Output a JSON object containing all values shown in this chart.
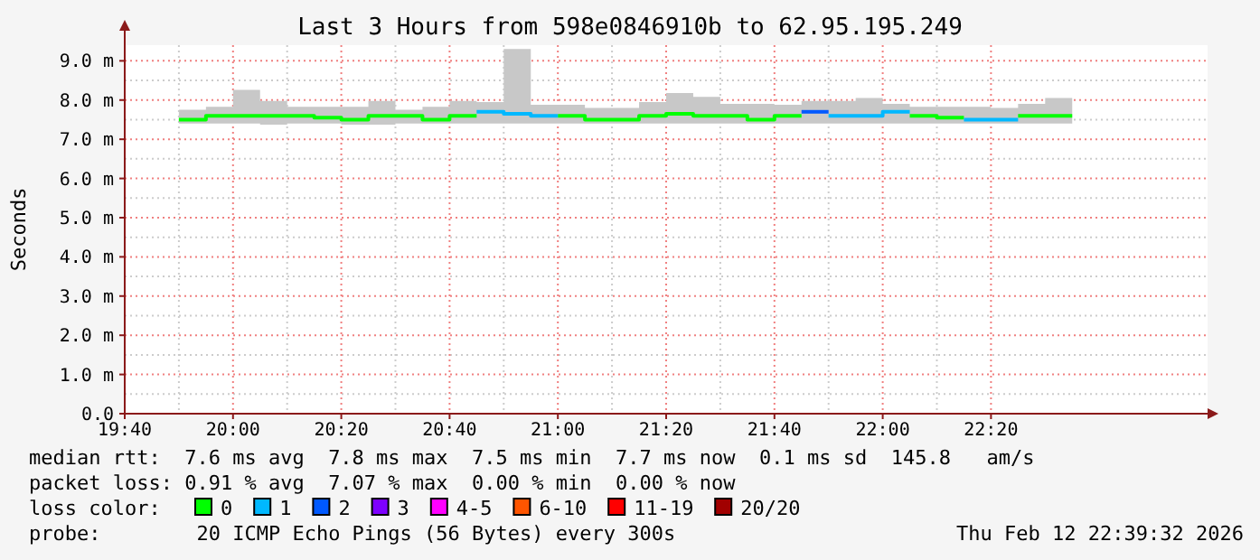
{
  "chart_data": {
    "type": "step",
    "title": "Last 3 Hours from 598e0846910b to 62.95.195.249",
    "ylabel": "Seconds",
    "legend_title": "loss color:",
    "legend": "bottom",
    "grid": true,
    "xlim": [
      19.6667,
      23
    ],
    "xticks": [
      {
        "value": 19.6667,
        "label": "19:40"
      },
      {
        "value": 20,
        "label": "20:00"
      },
      {
        "value": 20.3333,
        "label": "20:20"
      },
      {
        "value": 20.6667,
        "label": "20:40"
      },
      {
        "value": 21,
        "label": "21:00"
      },
      {
        "value": 21.3333,
        "label": "21:20"
      },
      {
        "value": 21.6667,
        "label": "21:40"
      },
      {
        "value": 22,
        "label": "22:00"
      },
      {
        "value": 22.3333,
        "label": "22:20"
      }
    ],
    "ylim": [
      0,
      9.4
    ],
    "yticks": [
      {
        "value": 0,
        "label": "0.0"
      },
      {
        "value": 1,
        "label": "1.0 m"
      },
      {
        "value": 2,
        "label": "2.0 m"
      },
      {
        "value": 3,
        "label": "3.0 m"
      },
      {
        "value": 4,
        "label": "4.0 m"
      },
      {
        "value": 5,
        "label": "5.0 m"
      },
      {
        "value": 6,
        "label": "6.0 m"
      },
      {
        "value": 7,
        "label": "7.0 m"
      },
      {
        "value": 8,
        "label": "8.0 m"
      },
      {
        "value": 9,
        "label": "9.0 m"
      }
    ],
    "series": [
      {
        "color": "#c8c8c8",
        "x": [
          19.8333,
          19.9167,
          20,
          20.0833,
          20.1667,
          20.25,
          20.3333,
          20.4167,
          20.5,
          20.5833,
          20.6667,
          20.75,
          20.8333,
          20.9167,
          21,
          21.0833,
          21.1667,
          21.25,
          21.3333,
          21.4167,
          21.5,
          21.5833,
          21.6667,
          21.75,
          21.8333,
          21.9167,
          22,
          22.0833,
          22.1667,
          22.25,
          22.3333,
          22.4167,
          22.5,
          22.5833
        ],
        "values": [
          null,
          null,
          null,
          null,
          null,
          null,
          null,
          null,
          null,
          null,
          null,
          null,
          null,
          null,
          null,
          null,
          null,
          null,
          null,
          null,
          null,
          null,
          null,
          null,
          null,
          null,
          null,
          null,
          null,
          null,
          null,
          null,
          null,
          null
        ],
        "lower": [
          7.4,
          7.4,
          7.4,
          7.37,
          7.4,
          7.4,
          7.37,
          7.37,
          7.4,
          7.4,
          7.4,
          7.4,
          7.4,
          7.4,
          7.4,
          7.4,
          7.4,
          7.4,
          7.4,
          7.4,
          7.4,
          7.4,
          7.4,
          7.4,
          7.4,
          7.4,
          7.4,
          7.4,
          7.4,
          7.4,
          7.4,
          7.4,
          7.4,
          7.4
        ],
        "upper": [
          7.75,
          7.83,
          8.26,
          7.98,
          7.83,
          7.83,
          7.83,
          7.98,
          7.75,
          7.83,
          7.98,
          7.95,
          9.3,
          7.88,
          7.88,
          7.8,
          7.8,
          7.95,
          8.18,
          8.08,
          7.9,
          7.9,
          7.88,
          7.98,
          7.98,
          8.05,
          7.9,
          7.83,
          7.83,
          7.83,
          7.8,
          7.9,
          8.05,
          8.05
        ]
      },
      {
        "name": "0",
        "color": "#00ff00",
        "x": [
          19.8333,
          19.9167,
          20,
          20.0833,
          20.1667,
          20.25,
          20.3333,
          20.4167,
          20.5,
          20.5833,
          20.6667,
          20.75
        ],
        "values": [
          7.5,
          7.6,
          7.6,
          7.6,
          7.6,
          7.55,
          7.5,
          7.6,
          7.6,
          7.5,
          7.6,
          7.6
        ]
      },
      {
        "color": "#00ff00",
        "x": [
          21,
          21.0833,
          21.1667,
          21.25,
          21.3333,
          21.4167,
          21.5,
          21.5833,
          21.6667,
          21.75
        ],
        "values": [
          7.6,
          7.5,
          7.5,
          7.6,
          7.65,
          7.6,
          7.6,
          7.5,
          7.6,
          7.6
        ]
      },
      {
        "color": "#00ff00",
        "x": [
          22.0833,
          22.1667,
          22.25
        ],
        "values": [
          7.6,
          7.55,
          7.55
        ]
      },
      {
        "color": "#00ff00",
        "x": [
          22.4167,
          22.5,
          22.5833
        ],
        "values": [
          7.6,
          7.6,
          7.6
        ]
      },
      {
        "name": "1",
        "color": "#00b8ff",
        "x": [
          20.75,
          20.8333,
          20.9167,
          21
        ],
        "values": [
          7.7,
          7.65,
          7.6,
          7.6
        ]
      },
      {
        "color": "#00b8ff",
        "x": [
          21.8333,
          21.9167,
          22,
          22.0833
        ],
        "values": [
          7.6,
          7.6,
          7.7,
          7.7
        ]
      },
      {
        "color": "#00b8ff",
        "x": [
          22.25,
          22.3333,
          22.4167
        ],
        "values": [
          7.5,
          7.5,
          7.5
        ]
      },
      {
        "name": "2",
        "color": "#0059ff",
        "x": [
          21.75,
          21.8333
        ],
        "values": [
          7.7,
          7.7
        ]
      },
      {
        "name": "3",
        "color": "#7e00ff"
      },
      {
        "name": "4-5",
        "color": "#ff00ff"
      },
      {
        "name": "6-10",
        "color": "#ff5500"
      },
      {
        "name": "11-19",
        "color": "#ff0000"
      },
      {
        "name": "20/20",
        "color": "#a10000"
      }
    ],
    "annotations": [
      "median rtt:  7.6 ms avg  7.8 ms max  7.5 ms min  7.7 ms now  0.1 ms sd  145.8   am/s",
      "packet loss: 0.91 % avg  7.07 % max  0.00 % min  0.00 % now",
      "probe:        20 ICMP Echo Pings (56 Bytes) every 300s",
      "Thu Feb 12 22:39:32 2026"
    ]
  }
}
